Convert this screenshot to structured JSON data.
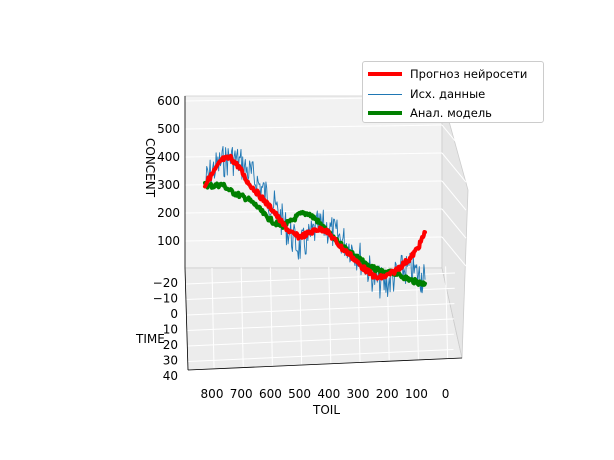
{
  "chart_data": {
    "type": "line",
    "projection": "3d",
    "title": "",
    "axes": {
      "x": {
        "label": "TOIL",
        "ticks": [
          "800",
          "700",
          "600",
          "500",
          "400",
          "300",
          "200",
          "100",
          "0"
        ],
        "range": [
          0,
          850
        ]
      },
      "y": {
        "label": "TIME",
        "ticks": [
          "−20",
          "−10",
          "0",
          "10",
          "20",
          "30",
          "40"
        ],
        "range": [
          -25,
          40
        ]
      },
      "z": {
        "label": "CONCENT",
        "ticks": [
          "100",
          "200",
          "300",
          "400",
          "500",
          "600"
        ],
        "range": [
          0,
          620
        ]
      }
    },
    "grid": true,
    "legend_position": "top-right",
    "series": [
      {
        "name": "Прогноз нейросети",
        "color": "#ff0000",
        "style": "thick-line",
        "x": [
          820,
          790,
          760,
          730,
          700,
          670,
          640,
          610,
          580,
          550,
          520,
          490,
          460,
          430,
          400,
          370,
          340,
          310,
          280,
          250,
          220,
          190,
          160,
          130,
          100,
          70,
          50
        ],
        "z": [
          300,
          350,
          400,
          410,
          380,
          330,
          300,
          270,
          240,
          200,
          170,
          160,
          175,
          195,
          200,
          170,
          140,
          120,
          90,
          70,
          50,
          60,
          80,
          110,
          140,
          190,
          240
        ]
      },
      {
        "name": "Исх. данные",
        "color": "#1f77b4",
        "style": "thin-line",
        "x": [
          820,
          790,
          760,
          730,
          700,
          670,
          640,
          610,
          580,
          550,
          520,
          490,
          460,
          430,
          400,
          370,
          340,
          310,
          280,
          250,
          220,
          190,
          160,
          130,
          100,
          70,
          50
        ],
        "z": [
          310,
          360,
          390,
          410,
          400,
          370,
          340,
          300,
          260,
          210,
          160,
          120,
          150,
          200,
          210,
          190,
          170,
          150,
          120,
          80,
          40,
          30,
          60,
          90,
          100,
          80,
          70
        ]
      },
      {
        "name": "Анал. модель",
        "color": "#008000",
        "style": "thick-line",
        "x": [
          820,
          790,
          760,
          730,
          700,
          670,
          640,
          610,
          580,
          550,
          520,
          490,
          460,
          430,
          400,
          370,
          340,
          310,
          280,
          250,
          220,
          190,
          160,
          130,
          100,
          70,
          50
        ],
        "z": [
          300,
          300,
          310,
          290,
          280,
          270,
          250,
          220,
          200,
          190,
          210,
          240,
          250,
          230,
          200,
          170,
          150,
          130,
          110,
          90,
          80,
          70,
          80,
          70,
          60,
          55,
          55
        ]
      }
    ]
  }
}
